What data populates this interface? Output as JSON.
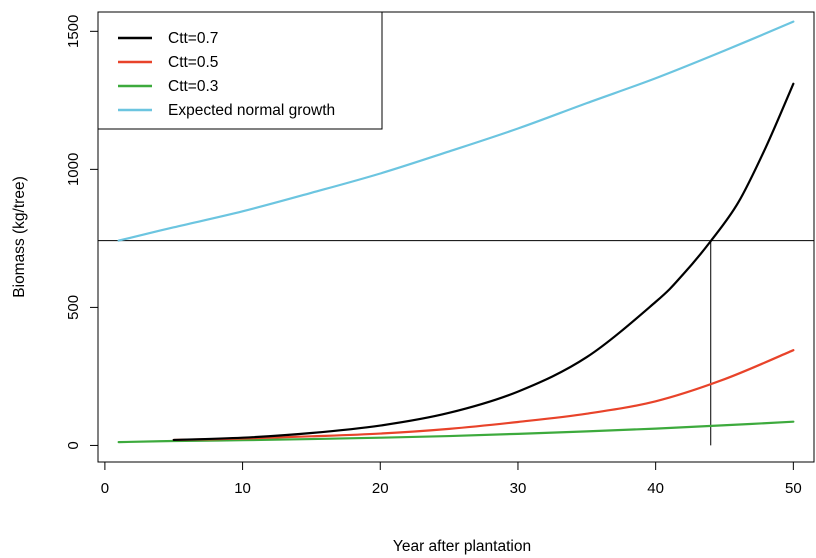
{
  "chart_data": {
    "type": "line",
    "title": "",
    "xlabel": "Year after plantation",
    "ylabel": "Biomass (kg/tree)",
    "xlim": [
      -0.5,
      51.5
    ],
    "ylim": [
      -60,
      1570
    ],
    "xticks": [
      0,
      10,
      20,
      30,
      40,
      50
    ],
    "yticks": [
      0,
      500,
      1000,
      1500
    ],
    "legend_position": "top-left",
    "series": [
      {
        "name": "Ctt=0.7",
        "color": "#000000",
        "x": [
          5,
          10,
          15,
          20,
          25,
          30,
          35,
          40,
          42,
          44,
          46,
          48,
          50
        ],
        "y": [
          20,
          28,
          45,
          72,
          118,
          195,
          320,
          520,
          620,
          740,
          880,
          1080,
          1310
        ]
      },
      {
        "name": "Ctt=0.5",
        "color": "#E8432A",
        "x": [
          5,
          10,
          15,
          20,
          25,
          30,
          35,
          40,
          45,
          50
        ],
        "y": [
          20,
          25,
          33,
          43,
          60,
          85,
          115,
          160,
          240,
          345
        ]
      },
      {
        "name": "Ctt=0.3",
        "color": "#3DAA3D",
        "x": [
          1,
          5,
          10,
          15,
          20,
          25,
          30,
          35,
          40,
          45,
          50
        ],
        "y": [
          12,
          16,
          19,
          23,
          28,
          34,
          42,
          51,
          61,
          73,
          86
        ]
      },
      {
        "name": "Expected normal growth",
        "color": "#6CC5E0",
        "x": [
          1,
          5,
          10,
          15,
          20,
          25,
          30,
          35,
          40,
          45,
          50
        ],
        "y": [
          742,
          790,
          848,
          915,
          985,
          1065,
          1148,
          1240,
          1330,
          1430,
          1535
        ]
      }
    ],
    "reference_lines": {
      "horizontal_y": 742,
      "vertical_x": 44,
      "vertical_from_y": 0,
      "vertical_to_y": 742
    }
  }
}
